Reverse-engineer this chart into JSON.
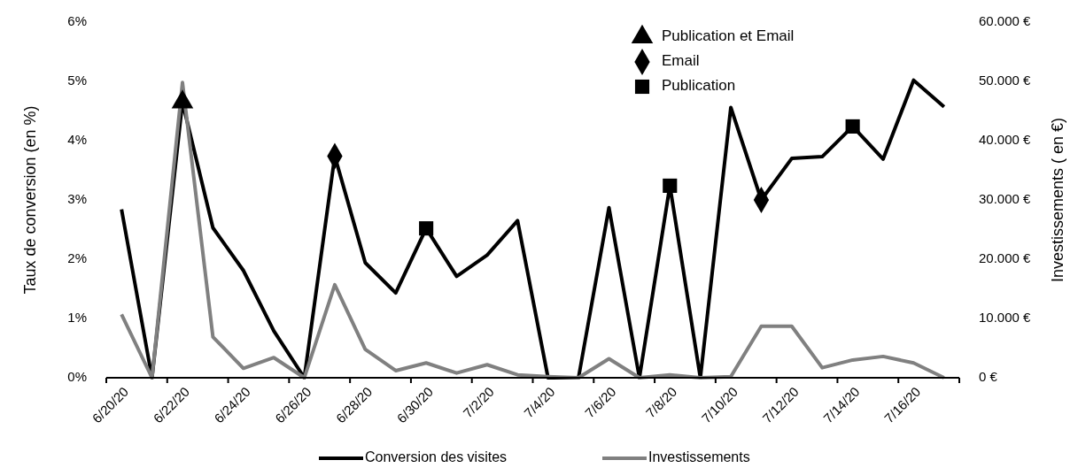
{
  "chart_data": {
    "type": "line",
    "categories": [
      "6/20/20",
      null,
      "6/22/20",
      null,
      "6/24/20",
      null,
      "6/26/20",
      null,
      "6/28/20",
      null,
      "6/30/20",
      null,
      "7/2/20",
      null,
      "7/4/20",
      null,
      "7/6/20",
      null,
      "7/8/20",
      null,
      "7/10/20",
      null,
      "7/12/20",
      null,
      "7/14/20",
      null,
      "7/16/20",
      null
    ],
    "series": [
      {
        "name": "Conversion des visites",
        "color": "#000000",
        "values": [
          2.84,
          0,
          4.65,
          2.53,
          1.81,
          0.79,
          0,
          3.74,
          1.94,
          1.43,
          2.52,
          1.71,
          2.07,
          2.65,
          0,
          0,
          2.87,
          0,
          3.24,
          0,
          4.56,
          3.0,
          3.7,
          3.73,
          4.24,
          3.69,
          5.02,
          4.57
        ]
      },
      {
        "name": "Investissements",
        "color": "#808080",
        "axis": "y2",
        "values": [
          10700,
          0,
          49800,
          6900,
          1600,
          3400,
          0,
          15700,
          4800,
          1200,
          2500,
          800,
          2200,
          500,
          200,
          0,
          3200,
          0,
          500,
          0,
          200,
          8700,
          8700,
          1700,
          3000,
          3600,
          2500,
          0
        ]
      },
      {
        "name": "Publication et Email",
        "type": "scatter",
        "marker": "triangle",
        "color": "#000000",
        "values": [
          null,
          null,
          4.65,
          null,
          null,
          null,
          null,
          null,
          null,
          null,
          null,
          null,
          null,
          null,
          null,
          null,
          null,
          null,
          null,
          null,
          null,
          null,
          null,
          null,
          null,
          null,
          null,
          null
        ]
      },
      {
        "name": "Email",
        "type": "scatter",
        "marker": "diamond",
        "color": "#000000",
        "values": [
          null,
          null,
          null,
          null,
          null,
          null,
          null,
          3.74,
          null,
          null,
          null,
          null,
          null,
          null,
          null,
          null,
          null,
          null,
          null,
          null,
          null,
          3.0,
          null,
          null,
          null,
          null,
          null,
          null
        ]
      },
      {
        "name": "Publication",
        "type": "scatter",
        "marker": "square",
        "color": "#000000",
        "values": [
          null,
          null,
          null,
          null,
          null,
          null,
          null,
          null,
          null,
          null,
          2.52,
          null,
          null,
          null,
          null,
          null,
          null,
          null,
          3.24,
          null,
          null,
          null,
          null,
          null,
          4.24,
          null,
          null,
          null
        ]
      }
    ],
    "ylabel": "Taux de conversion (en %)",
    "y2label": "Investissements ( en €)",
    "ylim": [
      0,
      6
    ],
    "yticks": [
      {
        "value": 0,
        "label": "0%"
      },
      {
        "value": 1,
        "label": "1%"
      },
      {
        "value": 2,
        "label": "2%"
      },
      {
        "value": 3,
        "label": "3%"
      },
      {
        "value": 4,
        "label": "4%"
      },
      {
        "value": 5,
        "label": "5%"
      },
      {
        "value": 6,
        "label": "6%"
      }
    ],
    "y2lim": [
      0,
      60000
    ],
    "y2ticks": [
      {
        "value": 0,
        "label": "0 €"
      },
      {
        "value": 10000,
        "label": "10.000 €"
      },
      {
        "value": 20000,
        "label": "20.000 €"
      },
      {
        "value": 30000,
        "label": "30.000 €"
      },
      {
        "value": 40000,
        "label": "40.000 €"
      },
      {
        "value": 50000,
        "label": "50.000 €"
      },
      {
        "value": 60000,
        "label": "60.000 €"
      }
    ],
    "legend": "bottom",
    "grid": false
  }
}
